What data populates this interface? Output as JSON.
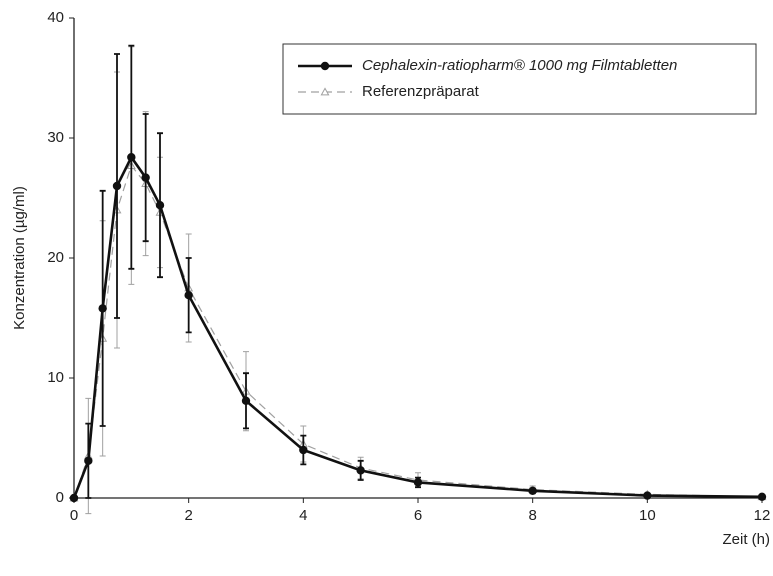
{
  "chart_data": {
    "type": "line",
    "y_label": "Konzentration (µg/ml)",
    "x_label": "Zeit (h)",
    "x": [
      0,
      0.25,
      0.5,
      0.75,
      1,
      1.25,
      1.5,
      2,
      3,
      4,
      5,
      6,
      8,
      10,
      12
    ],
    "xlim": [
      0,
      12
    ],
    "xticks": [
      0,
      2,
      4,
      6,
      8,
      10,
      12
    ],
    "ylim": [
      0,
      40
    ],
    "yticks": [
      0,
      10,
      20,
      30,
      40
    ],
    "grid": false,
    "legend": "upper right",
    "series": [
      {
        "name": "Cephalexin-ratiopharm® 1000 mg Filmtabletten",
        "color": "#111111",
        "dash": false,
        "marker": "circle",
        "filled": true,
        "italic": true,
        "values": [
          0,
          3.1,
          15.8,
          26,
          28.4,
          26.7,
          24.4,
          16.9,
          8.1,
          4.0,
          2.3,
          1.3,
          0.6,
          0.2,
          0.1
        ],
        "errors": [
          null,
          3.1,
          9.8,
          11,
          9.3,
          5.3,
          6,
          3.1,
          2.3,
          1.2,
          0.8,
          0.4,
          0.2,
          0.1,
          0.1
        ]
      },
      {
        "name": "Referenzpräparat",
        "color": "#a0a0a0",
        "dash": true,
        "marker": "triangle",
        "filled": false,
        "italic": false,
        "values": [
          0,
          3.5,
          13.3,
          24,
          27.7,
          26.2,
          23.8,
          17.5,
          8.9,
          4.5,
          2.5,
          1.5,
          0.7,
          0.3,
          0.1
        ],
        "errors": [
          null,
          4.8,
          9.8,
          11.5,
          9.9,
          6,
          4.6,
          4.5,
          3.3,
          1.5,
          0.9,
          0.6,
          0.3,
          0.1,
          0.1
        ]
      }
    ]
  }
}
